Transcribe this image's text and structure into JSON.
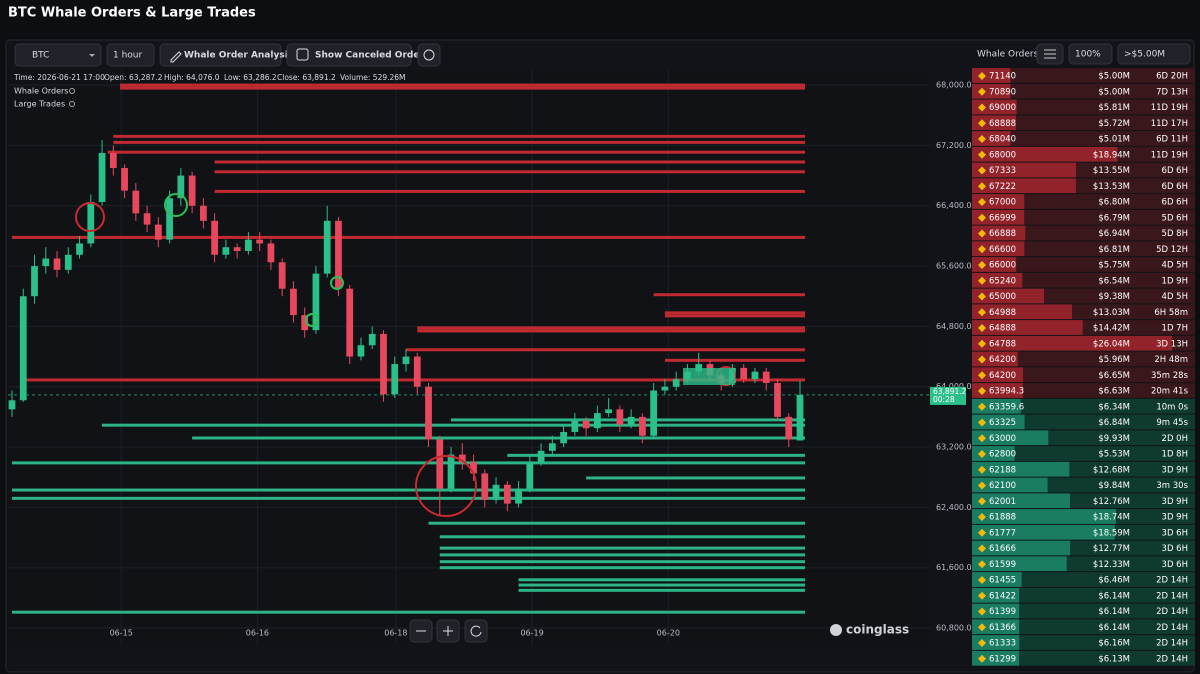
{
  "header": {
    "title": "BTC Whale Orders & Large Trades"
  },
  "toolbar": {
    "symbol": "BTC",
    "interval": "1 hour",
    "analysis_button": "Whale Order Analysis",
    "canceled_toggle": "Show Canceled Orders"
  },
  "chart_data": {
    "type": "candlestick",
    "info": [
      "Time: 2026-06-21 17:00",
      "Open: 63,287.2",
      "High: 64,076.0",
      "Low: 63,286.2",
      "Close: 63,891.2",
      "Volume: 529.26M"
    ],
    "legend": [
      "Whale Orders",
      "Large Trades"
    ],
    "candles": [
      [
        63700,
        63950,
        63600,
        63820
      ],
      [
        63820,
        65300,
        63800,
        65200
      ],
      [
        65200,
        65750,
        65100,
        65600
      ],
      [
        65600,
        65850,
        65500,
        65700
      ],
      [
        65700,
        65800,
        65450,
        65550
      ],
      [
        65550,
        65850,
        65500,
        65750
      ],
      [
        65750,
        66000,
        65700,
        65900
      ],
      [
        65900,
        66550,
        65850,
        66450
      ],
      [
        66450,
        67270,
        66400,
        67100
      ],
      [
        67100,
        67200,
        66800,
        66900
      ],
      [
        66900,
        66950,
        66500,
        66600
      ],
      [
        66600,
        66700,
        66200,
        66300
      ],
      [
        66300,
        66400,
        66050,
        66150
      ],
      [
        66150,
        66250,
        65850,
        65950
      ],
      [
        65950,
        66600,
        65900,
        66500
      ],
      [
        66500,
        66900,
        66400,
        66800
      ],
      [
        66800,
        66850,
        66300,
        66400
      ],
      [
        66400,
        66500,
        66100,
        66200
      ],
      [
        66200,
        66300,
        65650,
        65750
      ],
      [
        65750,
        65950,
        65700,
        65850
      ],
      [
        65850,
        65900,
        65700,
        65800
      ],
      [
        65800,
        66050,
        65750,
        65950
      ],
      [
        65950,
        66050,
        65800,
        65900
      ],
      [
        65900,
        65950,
        65550,
        65650
      ],
      [
        65650,
        65700,
        65200,
        65300
      ],
      [
        65300,
        65400,
        64850,
        64950
      ],
      [
        64950,
        65050,
        64650,
        64750
      ],
      [
        64750,
        65600,
        64700,
        65500
      ],
      [
        65500,
        66400,
        65450,
        66200
      ],
      [
        66200,
        66250,
        65200,
        65300
      ],
      [
        65300,
        65350,
        64300,
        64400
      ],
      [
        64400,
        64650,
        64350,
        64550
      ],
      [
        64550,
        64800,
        64500,
        64700
      ],
      [
        64700,
        64750,
        63800,
        63900
      ],
      [
        63900,
        64400,
        63850,
        64300
      ],
      [
        64300,
        64500,
        64200,
        64400
      ],
      [
        64400,
        64450,
        63900,
        64000
      ],
      [
        64000,
        64050,
        63200,
        63300
      ],
      [
        63300,
        63350,
        62300,
        62650
      ],
      [
        62650,
        63200,
        62600,
        63100
      ],
      [
        63100,
        63250,
        62900,
        63000
      ],
      [
        63000,
        63100,
        62750,
        62850
      ],
      [
        62850,
        62900,
        62400,
        62500
      ],
      [
        62500,
        62800,
        62450,
        62700
      ],
      [
        62700,
        62750,
        62350,
        62450
      ],
      [
        62450,
        62750,
        62400,
        62650
      ],
      [
        62650,
        63100,
        62600,
        63000
      ],
      [
        63000,
        63250,
        62950,
        63150
      ],
      [
        63150,
        63350,
        63100,
        63250
      ],
      [
        63250,
        63500,
        63200,
        63400
      ],
      [
        63400,
        63650,
        63350,
        63550
      ],
      [
        63550,
        63600,
        63350,
        63450
      ],
      [
        63450,
        63750,
        63400,
        63650
      ],
      [
        63650,
        63850,
        63600,
        63700
      ],
      [
        63700,
        63750,
        63400,
        63500
      ],
      [
        63500,
        63700,
        63450,
        63600
      ],
      [
        63600,
        63650,
        63250,
        63350
      ],
      [
        63350,
        64050,
        63300,
        63950
      ],
      [
        63950,
        64100,
        63900,
        64000
      ],
      [
        64000,
        64200,
        63950,
        64100
      ],
      [
        64100,
        64300,
        64050,
        64200
      ],
      [
        64200,
        64450,
        64150,
        64300
      ],
      [
        64300,
        64350,
        64100,
        64150
      ],
      [
        64150,
        64200,
        63950,
        64050
      ],
      [
        64050,
        64300,
        64000,
        64250
      ],
      [
        64250,
        64300,
        64050,
        64100
      ],
      [
        64100,
        64250,
        64050,
        64200
      ],
      [
        64200,
        64250,
        63950,
        64050
      ],
      [
        64050,
        64100,
        63550,
        63600
      ],
      [
        63600,
        63650,
        63200,
        63300
      ],
      [
        63287.2,
        64076,
        63286.2,
        63891.2
      ]
    ],
    "xticks": [
      {
        "value": 9.7,
        "label": "06-15"
      },
      {
        "value": 21.8,
        "label": "06-16"
      },
      {
        "value": 34.1,
        "label": "06-18"
      },
      {
        "value": 46.2,
        "label": "06-19"
      },
      {
        "value": 58.3,
        "label": "06-20"
      }
    ],
    "ylim": [
      60575,
      68200
    ],
    "yticks": [
      {
        "value": 68000,
        "label": "68,000.0"
      },
      {
        "value": 67200,
        "label": "67,200.0"
      },
      {
        "value": 66400,
        "label": "66,400.0"
      },
      {
        "value": 65600,
        "label": "65,600.0"
      },
      {
        "value": 64800,
        "label": "64,800.0"
      },
      {
        "value": 64000,
        "label": "64,000.0"
      },
      {
        "value": 63200,
        "label": "63,200.0"
      },
      {
        "value": 62400,
        "label": "62,400.0"
      },
      {
        "value": 61600,
        "label": "61,600.0"
      },
      {
        "value": 60800,
        "label": "60,800.0"
      }
    ],
    "grid": true,
    "up_color": "#2bbf8a",
    "down_color": "#e8485d",
    "current_price_label": "63,891.2",
    "countdown": "00:28",
    "whale_lines": [
      {
        "price": 68000,
        "start": 9.6
      },
      {
        "price": 67960,
        "start": 9.6
      },
      {
        "price": 67320,
        "start": 9
      },
      {
        "price": 67240,
        "start": 9
      },
      {
        "price": 67110,
        "start": 8.5
      },
      {
        "price": 66980,
        "start": 18
      },
      {
        "price": 66850,
        "start": 18
      },
      {
        "price": 66590,
        "start": 18
      },
      {
        "price": 65980,
        "start": 0
      },
      {
        "price": 65220,
        "start": 57
      },
      {
        "price": 64980,
        "start": 58
      },
      {
        "price": 64940,
        "start": 58
      },
      {
        "price": 64780,
        "start": 36
      },
      {
        "price": 64740,
        "start": 36
      },
      {
        "price": 64490,
        "start": 35
      },
      {
        "price": 64350,
        "start": 58
      },
      {
        "price": 63560,
        "start": 39
      },
      {
        "price": 63090,
        "start": 44
      },
      {
        "price": 64090,
        "start": 1
      },
      {
        "price": 63490,
        "start": 8
      },
      {
        "price": 63320,
        "start": 16
      },
      {
        "price": 62990,
        "start": 0
      },
      {
        "price": 62790,
        "start": 51
      },
      {
        "price": 62630,
        "start": 0
      },
      {
        "price": 62520,
        "start": 0
      },
      {
        "price": 62190,
        "start": 37
      },
      {
        "price": 62010,
        "start": 38
      },
      {
        "price": 61860,
        "start": 38
      },
      {
        "price": 61770,
        "start": 38
      },
      {
        "price": 61680,
        "start": 38
      },
      {
        "price": 61600,
        "start": 38
      },
      {
        "price": 61440,
        "start": 45
      },
      {
        "price": 61370,
        "start": 45
      },
      {
        "price": 61300,
        "start": 45
      },
      {
        "price": 61010,
        "start": 0
      }
    ],
    "ask_color": "#c22a31",
    "bid_color": "#2cb386",
    "watermark": "coinglass"
  },
  "order_book": {
    "title": "Whale Orders",
    "zoom": "100%",
    "min_size": ">$5.00M",
    "rows": [
      {
        "price": 71140,
        "amount": {
          "value": 5.0,
          "label": "$5.00M"
        },
        "age": "6D 20H"
      },
      {
        "price": 70890,
        "amount": {
          "value": 5.0,
          "label": "$5.00M"
        },
        "age": "7D 13H"
      },
      {
        "price": 69000,
        "amount": {
          "value": 5.81,
          "label": "$5.81M"
        },
        "age": "11D 19H"
      },
      {
        "price": 68888,
        "amount": {
          "value": 5.72,
          "label": "$5.72M"
        },
        "age": "11D 17H"
      },
      {
        "price": 68040,
        "amount": {
          "value": 5.01,
          "label": "$5.01M"
        },
        "age": "6D 11H"
      },
      {
        "price": 68000,
        "amount": {
          "value": 18.94,
          "label": "$18.94M"
        },
        "age": "11D 19H"
      },
      {
        "price": 67333,
        "amount": {
          "value": 13.55,
          "label": "$13.55M"
        },
        "age": "6D 6H"
      },
      {
        "price": 67222,
        "amount": {
          "value": 13.53,
          "label": "$13.53M"
        },
        "age": "6D 6H"
      },
      {
        "price": 67000,
        "amount": {
          "value": 6.8,
          "label": "$6.80M"
        },
        "age": "6D 6H"
      },
      {
        "price": 66999,
        "amount": {
          "value": 6.79,
          "label": "$6.79M"
        },
        "age": "5D 6H"
      },
      {
        "price": 66888,
        "amount": {
          "value": 6.94,
          "label": "$6.94M"
        },
        "age": "5D 8H"
      },
      {
        "price": 66600,
        "amount": {
          "value": 6.81,
          "label": "$6.81M"
        },
        "age": "5D 12H"
      },
      {
        "price": 66000,
        "amount": {
          "value": 5.75,
          "label": "$5.75M"
        },
        "age": "4D 5H"
      },
      {
        "price": 65240,
        "amount": {
          "value": 6.54,
          "label": "$6.54M"
        },
        "age": "1D 9H"
      },
      {
        "price": 65000,
        "amount": {
          "value": 9.38,
          "label": "$9.38M"
        },
        "age": "4D 5H"
      },
      {
        "price": 64988,
        "amount": {
          "value": 13.03,
          "label": "$13.03M"
        },
        "age": "6H 58m"
      },
      {
        "price": 64888,
        "amount": {
          "value": 14.42,
          "label": "$14.42M"
        },
        "age": "1D 7H"
      },
      {
        "price": 64788,
        "amount": {
          "value": 26.04,
          "label": "$26.04M"
        },
        "age": "3D 13H"
      },
      {
        "price": 64200,
        "amount": {
          "value": 5.96,
          "label": "$5.96M"
        },
        "age": "2H 48m"
      },
      {
        "price": 64200,
        "amount": {
          "value": 6.65,
          "label": "$6.65M"
        },
        "age": "35m 28s"
      },
      {
        "price": 63994.3,
        "amount": {
          "value": 6.63,
          "label": "$6.63M"
        },
        "age": "20m 41s"
      },
      {
        "price": 63359.6,
        "amount": {
          "value": 6.34,
          "label": "$6.34M"
        },
        "age": "10m 0s"
      },
      {
        "price": 63325,
        "amount": {
          "value": 6.84,
          "label": "$6.84M"
        },
        "age": "9m 45s"
      },
      {
        "price": 63000,
        "amount": {
          "value": 9.93,
          "label": "$9.93M"
        },
        "age": "2D 0H"
      },
      {
        "price": 62800,
        "amount": {
          "value": 5.53,
          "label": "$5.53M"
        },
        "age": "1D 8H"
      },
      {
        "price": 62188,
        "amount": {
          "value": 12.68,
          "label": "$12.68M"
        },
        "age": "3D 9H"
      },
      {
        "price": 62100,
        "amount": {
          "value": 9.84,
          "label": "$9.84M"
        },
        "age": "3m 30s"
      },
      {
        "price": 62001,
        "amount": {
          "value": 12.76,
          "label": "$12.76M"
        },
        "age": "3D 9H"
      },
      {
        "price": 61888,
        "amount": {
          "value": 18.74,
          "label": "$18.74M"
        },
        "age": "3D 9H"
      },
      {
        "price": 61777,
        "amount": {
          "value": 18.59,
          "label": "$18.59M"
        },
        "age": "3D 6H"
      },
      {
        "price": 61666,
        "amount": {
          "value": 12.77,
          "label": "$12.77M"
        },
        "age": "3D 6H"
      },
      {
        "price": 61599,
        "amount": {
          "value": 12.33,
          "label": "$12.33M"
        },
        "age": "3D 6H"
      },
      {
        "price": 61455,
        "amount": {
          "value": 6.46,
          "label": "$6.46M"
        },
        "age": "2D 14H"
      },
      {
        "price": 61422,
        "amount": {
          "value": 6.14,
          "label": "$6.14M"
        },
        "age": "2D 14H"
      },
      {
        "price": 61399,
        "amount": {
          "value": 6.14,
          "label": "$6.14M"
        },
        "age": "2D 14H"
      },
      {
        "price": 61366,
        "amount": {
          "value": 6.14,
          "label": "$6.14M"
        },
        "age": "2D 14H"
      },
      {
        "price": 61333,
        "amount": {
          "value": 6.16,
          "label": "$6.16M"
        },
        "age": "2D 14H"
      },
      {
        "price": 61299,
        "amount": {
          "value": 6.13,
          "label": "$6.13M"
        },
        "age": "2D 14H"
      }
    ]
  }
}
